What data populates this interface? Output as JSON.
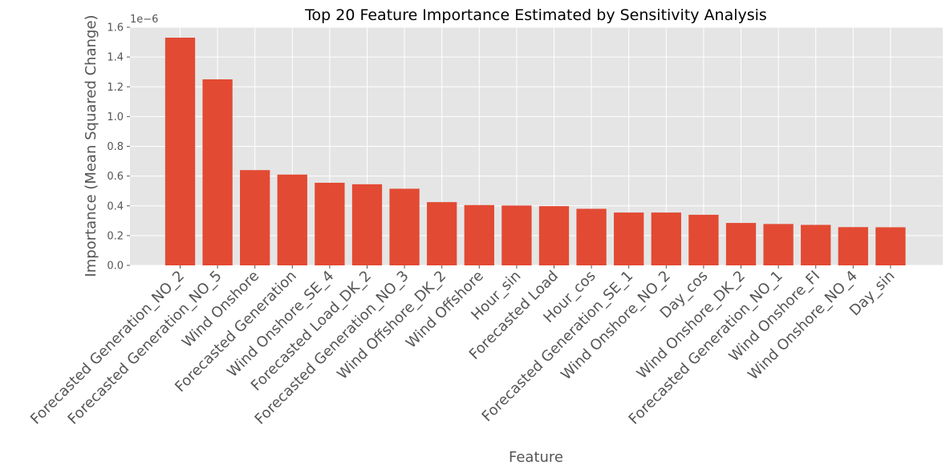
{
  "chart_data": {
    "type": "bar",
    "title": "Top 20 Feature Importance Estimated by Sensitivity Analysis",
    "xlabel": "Feature",
    "ylabel": "Importance (Mean Squared Change)",
    "y_offset_label": "1e−6",
    "ylim": [
      0,
      1.6
    ],
    "yticks": [
      0.0,
      0.2,
      0.4,
      0.6,
      0.8,
      1.0,
      1.2,
      1.4,
      1.6
    ],
    "ytick_labels": [
      "0.0",
      "0.2",
      "0.4",
      "0.6",
      "0.8",
      "1.0",
      "1.2",
      "1.4",
      "1.6"
    ],
    "grid": true,
    "bar_color": "#E24A33",
    "background_color": "#E5E5E5",
    "categories": [
      "Forecasted Generation_NO_2",
      "Forecasted Generation_NO_5",
      "Wind Onshore",
      "Forecasted Generation",
      "Wind Onshore_SE_4",
      "Forecasted Load_DK_2",
      "Forecasted Generation_NO_3",
      "Wind Offshore_DK_2",
      "Wind Offshore",
      "Hour_sin",
      "Forecasted Load",
      "Hour_cos",
      "Forecasted Generation_SE_1",
      "Wind Onshore_NO_2",
      "Day_cos",
      "Wind Onshore_DK_2",
      "Forecasted Generation_NO_1",
      "Wind Onshore_FI",
      "Wind Onshore_NO_4",
      "Day_sin"
    ],
    "values": [
      1.53,
      1.25,
      0.64,
      0.61,
      0.555,
      0.545,
      0.515,
      0.425,
      0.405,
      0.402,
      0.398,
      0.38,
      0.355,
      0.355,
      0.34,
      0.285,
      0.278,
      0.272,
      0.257,
      0.256
    ]
  }
}
